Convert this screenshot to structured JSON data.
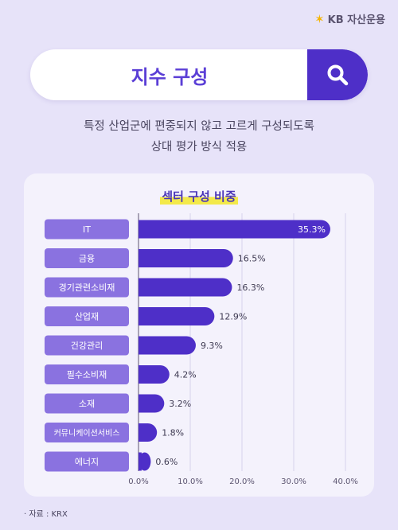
{
  "brand": {
    "logo_symbol": "✶",
    "name": "KB 자산운용"
  },
  "search": {
    "title": "지수 구성",
    "icon": "search-icon"
  },
  "description": {
    "line1": "특정 산업군에 편중되지 않고 고르게 구성되도록",
    "line2": "상대 평가 방식 적용"
  },
  "chart_data": {
    "type": "bar",
    "orientation": "horizontal",
    "title": "섹터 구성 비중",
    "categories": [
      "IT",
      "금융",
      "경기관련소비재",
      "산업재",
      "건강관리",
      "필수소비재",
      "소재",
      "커뮤니케이션서비스",
      "에너지"
    ],
    "values": [
      35.3,
      16.5,
      16.3,
      12.9,
      9.3,
      4.2,
      3.2,
      1.8,
      0.6
    ],
    "value_labels": [
      "35.3%",
      "16.5%",
      "16.3%",
      "12.9%",
      "9.3%",
      "4.2%",
      "3.2%",
      "1.8%",
      "0.6%"
    ],
    "xlim": [
      0,
      40
    ],
    "ticks": [
      0,
      10,
      20,
      30,
      40
    ],
    "tick_labels": [
      "0.0%",
      "10.0%",
      "20.0%",
      "30.0%",
      "40.0%"
    ],
    "grid": true,
    "colors": {
      "bar": "#4e2fc8",
      "category_box": "#8a72e0",
      "grid": "#d6d1ec"
    }
  },
  "source": "자료 : KRX"
}
